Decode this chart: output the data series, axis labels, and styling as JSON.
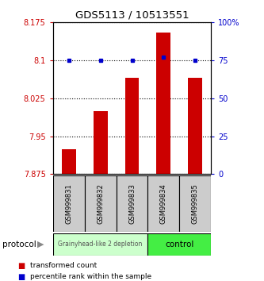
{
  "title": "GDS5113 / 10513551",
  "samples": [
    "GSM999831",
    "GSM999832",
    "GSM999833",
    "GSM999834",
    "GSM999835"
  ],
  "bar_values": [
    7.925,
    8.0,
    8.065,
    8.155,
    8.065
  ],
  "percentile_values": [
    75,
    75,
    75,
    77,
    75
  ],
  "ylim_left": [
    7.875,
    8.175
  ],
  "ylim_right": [
    0,
    100
  ],
  "yticks_left": [
    7.875,
    7.95,
    8.025,
    8.1,
    8.175
  ],
  "yticks_right": [
    0,
    25,
    50,
    75,
    100
  ],
  "bar_color": "#cc0000",
  "dot_color": "#0000cc",
  "group1_label": "Grainyhead-like 2 depletion",
  "group2_label": "control",
  "group1_color": "#ccffcc",
  "group2_color": "#44ee44",
  "group1_indices": [
    0,
    1,
    2
  ],
  "group2_indices": [
    3,
    4
  ],
  "legend_bar_label": "transformed count",
  "legend_dot_label": "percentile rank within the sample",
  "protocol_label": "protocol",
  "background_color": "#ffffff",
  "sample_bg_color": "#cccccc"
}
